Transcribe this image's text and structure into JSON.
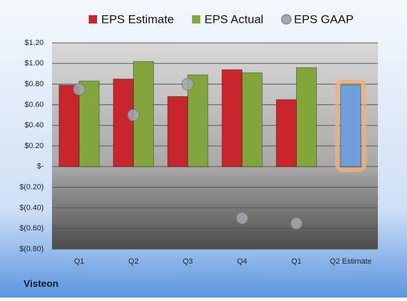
{
  "chart_data": {
    "type": "bar",
    "categories": [
      "Q1",
      "Q2",
      "Q3",
      "Q4",
      "Q1",
      "Q2 Estimate"
    ],
    "series": [
      {
        "name": "EPS Estimate",
        "color": "#c8262c",
        "values": [
          0.79,
          0.85,
          0.68,
          0.94,
          0.65,
          0.79
        ]
      },
      {
        "name": "EPS Actual",
        "color": "#82a63c",
        "values": [
          0.83,
          1.02,
          0.89,
          0.91,
          0.96,
          null
        ]
      },
      {
        "name": "EPS GAAP",
        "color": "#a3a8b0",
        "marker": "circle",
        "values": [
          0.75,
          0.5,
          0.8,
          -0.5,
          -0.55,
          null
        ]
      }
    ],
    "highlight": {
      "index": 5,
      "color": "#6fa0dc",
      "glow": "#f4b070"
    },
    "ylim": [
      -0.8,
      1.2
    ],
    "yticks": [
      {
        "value": 1.2,
        "label": "$1.20"
      },
      {
        "value": 1.0,
        "label": "$1.00"
      },
      {
        "value": 0.8,
        "label": "$0.80"
      },
      {
        "value": 0.6,
        "label": "$0.60"
      },
      {
        "value": 0.4,
        "label": "$0.40"
      },
      {
        "value": 0.2,
        "label": "$0.20"
      },
      {
        "value": 0,
        "label": "$-"
      },
      {
        "value": -0.2,
        "label": "$(0.20)"
      },
      {
        "value": -0.4,
        "label": "$(0.40)"
      },
      {
        "value": -0.6,
        "label": "$(0.60)"
      },
      {
        "value": -0.8,
        "label": "$(0.80)"
      }
    ],
    "grid": true,
    "company": "Visteon"
  }
}
